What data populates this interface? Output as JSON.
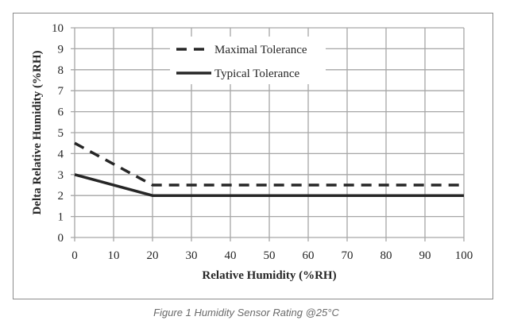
{
  "chart_data": {
    "type": "line",
    "title": "",
    "xlabel": "Relative Humidity (%RH)",
    "ylabel": "Delta Relative Humidity (%RH)",
    "xlim": [
      0,
      100
    ],
    "ylim": [
      0,
      10
    ],
    "xticks": [
      0,
      10,
      20,
      30,
      40,
      50,
      60,
      70,
      80,
      90,
      100
    ],
    "yticks": [
      0,
      1,
      2,
      3,
      4,
      5,
      6,
      7,
      8,
      9,
      10
    ],
    "grid": true,
    "legend_position": "top-center",
    "series": [
      {
        "name": "Maximal Tolerance",
        "style": "dashed",
        "color": "#262626",
        "x": [
          0,
          20,
          100
        ],
        "y": [
          4.5,
          2.5,
          2.5
        ]
      },
      {
        "name": "Typical Tolerance",
        "style": "solid",
        "color": "#262626",
        "x": [
          0,
          20,
          100
        ],
        "y": [
          3,
          2,
          2
        ]
      }
    ]
  },
  "caption": "Figure 1 Humidity Sensor Rating @25°C"
}
